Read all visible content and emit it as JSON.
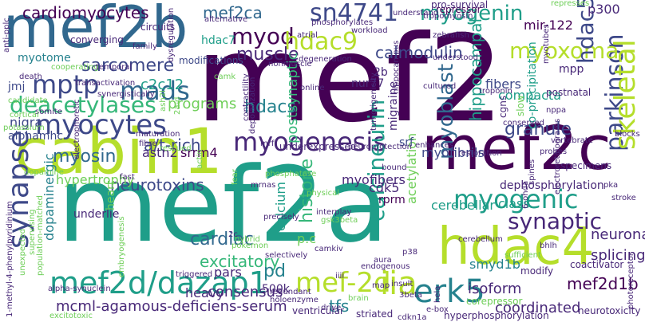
{
  "words": [
    {
      "text": "mef2"
    },
    {
      "text": "mef2a"
    },
    {
      "text": "mef2b"
    },
    {
      "text": "cabin1"
    },
    {
      "text": "mef2c"
    },
    {
      "text": "hdac4"
    },
    {
      "text": "myogenesis"
    },
    {
      "text": "sn4741"
    },
    {
      "text": "myocytes"
    },
    {
      "text": "mef2d/dazap1"
    },
    {
      "text": "mef-2d"
    },
    {
      "text": "erk5"
    },
    {
      "text": "parkinson"
    },
    {
      "text": "skeletal"
    },
    {
      "text": "myogenic"
    },
    {
      "text": "mptp"
    },
    {
      "text": "deacetylases"
    },
    {
      "text": "myod"
    },
    {
      "text": "hdac9"
    },
    {
      "text": "myogenin"
    },
    {
      "text": "myoxoma"
    },
    {
      "text": "hdac5"
    },
    {
      "text": "calcineurin"
    },
    {
      "text": "synapse"
    },
    {
      "text": "mads"
    },
    {
      "text": "iia"
    },
    {
      "text": "synaptic"
    },
    {
      "text": "mef2d1b"
    },
    {
      "text": "sarcomere"
    },
    {
      "text": "c2c12"
    },
    {
      "text": "muscle"
    },
    {
      "text": "hdacs"
    },
    {
      "text": "granule"
    },
    {
      "text": "myosin"
    },
    {
      "text": "myoblast"
    },
    {
      "text": "cardiomyocytes"
    },
    {
      "text": "mef2ca"
    },
    {
      "text": "calmodulin"
    },
    {
      "text": "excitatory"
    },
    {
      "text": "cardiac"
    },
    {
      "text": "neurotoxins"
    },
    {
      "text": "hypertrophy"
    },
    {
      "text": "a/t-rich"
    },
    {
      "text": "histone"
    },
    {
      "text": "postsynaptic"
    },
    {
      "text": "hippocampal"
    },
    {
      "text": "cerebellar"
    },
    {
      "text": "class"
    },
    {
      "text": "splicing"
    },
    {
      "text": "neuronal"
    },
    {
      "text": "mcml-agamous-deficiens-serum"
    },
    {
      "text": "consensus"
    },
    {
      "text": "coordinated"
    },
    {
      "text": "isoform"
    },
    {
      "text": "pd"
    },
    {
      "text": "500k"
    },
    {
      "text": "cdk5"
    },
    {
      "text": "rprm"
    },
    {
      "text": "tfs"
    },
    {
      "text": "heavy"
    },
    {
      "text": "myofibrils"
    },
    {
      "text": "myofibers"
    },
    {
      "text": "compacta"
    },
    {
      "text": "fibers"
    },
    {
      "text": "co-precipitation"
    },
    {
      "text": "programs"
    },
    {
      "text": "nigra"
    },
    {
      "text": "alphamhc"
    },
    {
      "text": "jmj"
    },
    {
      "text": "myotome"
    },
    {
      "text": "srrm4"
    },
    {
      "text": "astn2"
    },
    {
      "text": "migraine"
    },
    {
      "text": "calcium"
    },
    {
      "text": "acetylation"
    },
    {
      "text": "smyd1b"
    },
    {
      "text": "srf"
    },
    {
      "text": "dopaminergic"
    },
    {
      "text": "underlie"
    },
    {
      "text": "pars"
    },
    {
      "text": "heart"
    },
    {
      "text": "1-methyl-4-phenylpyridinium"
    },
    {
      "text": "alpha-synuclein"
    },
    {
      "text": "excitotoxic"
    },
    {
      "text": "mir-122"
    },
    {
      "text": "p300"
    },
    {
      "text": "repressor"
    },
    {
      "text": "nur77"
    },
    {
      "text": "2b"
    },
    {
      "text": "hdac7"
    },
    {
      "text": "circuits"
    },
    {
      "text": "family"
    },
    {
      "text": "converging"
    },
    {
      "text": "anti-pplc"
    },
    {
      "text": "cooperating"
    },
    {
      "text": "temporal"
    },
    {
      "text": "modifications"
    },
    {
      "text": "transactivation"
    },
    {
      "text": "death"
    },
    {
      "text": "candidate"
    },
    {
      "text": "somite"
    },
    {
      "text": "cortical"
    },
    {
      "text": "potassium"
    },
    {
      "text": "synergistically"
    },
    {
      "text": "maturation"
    },
    {
      "text": "fibre"
    },
    {
      "text": "rescued"
    },
    {
      "text": "fast"
    },
    {
      "text": "dopamine"
    },
    {
      "text": "electrophoretic"
    },
    {
      "text": "bound"
    },
    {
      "text": "phosphatase"
    },
    {
      "text": "actin"
    },
    {
      "text": "fear"
    },
    {
      "text": "precisely"
    },
    {
      "text": "interplay"
    },
    {
      "text": "pokemon"
    },
    {
      "text": "hybrid"
    },
    {
      "text": "camkiv"
    },
    {
      "text": "selectively"
    },
    {
      "text": "redundant"
    },
    {
      "text": "holoenzyme"
    },
    {
      "text": "triggered"
    },
    {
      "text": "p38"
    },
    {
      "text": "aura"
    },
    {
      "text": "endogenous"
    },
    {
      "text": "insult"
    },
    {
      "text": "striated"
    },
    {
      "text": "ventricular"
    },
    {
      "text": "drive"
    },
    {
      "text": "map"
    },
    {
      "text": "brain"
    },
    {
      "text": "hyperphosphorylation"
    },
    {
      "text": "neurotoxicity"
    },
    {
      "text": "corepressor"
    },
    {
      "text": "modify"
    },
    {
      "text": "coactivator"
    },
    {
      "text": "cerebellum"
    },
    {
      "text": "sufficient"
    },
    {
      "text": "dephosphorylation"
    },
    {
      "text": "pka"
    },
    {
      "text": "stroke"
    },
    {
      "text": "specimens"
    },
    {
      "text": "probes"
    },
    {
      "text": "restoration"
    },
    {
      "text": "enhances"
    },
    {
      "text": "neuroprotection"
    },
    {
      "text": "underexpressed"
    },
    {
      "text": "mrf"
    },
    {
      "text": "contractility"
    },
    {
      "text": "depolarization"
    },
    {
      "text": "tumorigenicity"
    },
    {
      "text": "conserved"
    },
    {
      "text": "vertebrate"
    },
    {
      "text": "postnatal"
    },
    {
      "text": "troponin"
    },
    {
      "text": "cgns"
    },
    {
      "text": "slow"
    },
    {
      "text": "nppa"
    },
    {
      "text": "blocks"
    },
    {
      "text": "pro-survival"
    },
    {
      "text": "tropomyosin"
    },
    {
      "text": "understand"
    },
    {
      "text": "zebrafish"
    },
    {
      "text": "understood"
    },
    {
      "text": "myotubes"
    },
    {
      "text": "represses"
    },
    {
      "text": "alternative"
    },
    {
      "text": "phosphorylates"
    },
    {
      "text": "workload"
    },
    {
      "text": "atrial"
    },
    {
      "text": "nonmuscle"
    },
    {
      "text": "degeneration"
    },
    {
      "text": "online"
    },
    {
      "text": "dysregulation"
    },
    {
      "text": "ash2l"
    },
    {
      "text": "2a-d"
    },
    {
      "text": "mrnas"
    },
    {
      "text": "physical"
    },
    {
      "text": "gsk3beta"
    },
    {
      "text": "3beta"
    },
    {
      "text": "e-box"
    },
    {
      "text": "cdkn1a"
    },
    {
      "text": "6-ohda"
    },
    {
      "text": "electroretinograms"
    },
    {
      "text": "spines"
    },
    {
      "text": "photoreceptor"
    },
    {
      "text": "bhlh"
    },
    {
      "text": "hela"
    },
    {
      "text": "2c"
    },
    {
      "text": "embryogenesis"
    },
    {
      "text": "supervising"
    },
    {
      "text": "population-matched"
    },
    {
      "text": "unexpected"
    },
    {
      "text": "cultured"
    },
    {
      "text": "camk"
    },
    {
      "text": "mpp"
    },
    {
      "text": "hippocampus"
    },
    {
      "text": "p.c"
    },
    {
      "text": "iiii"
    }
  ]
}
